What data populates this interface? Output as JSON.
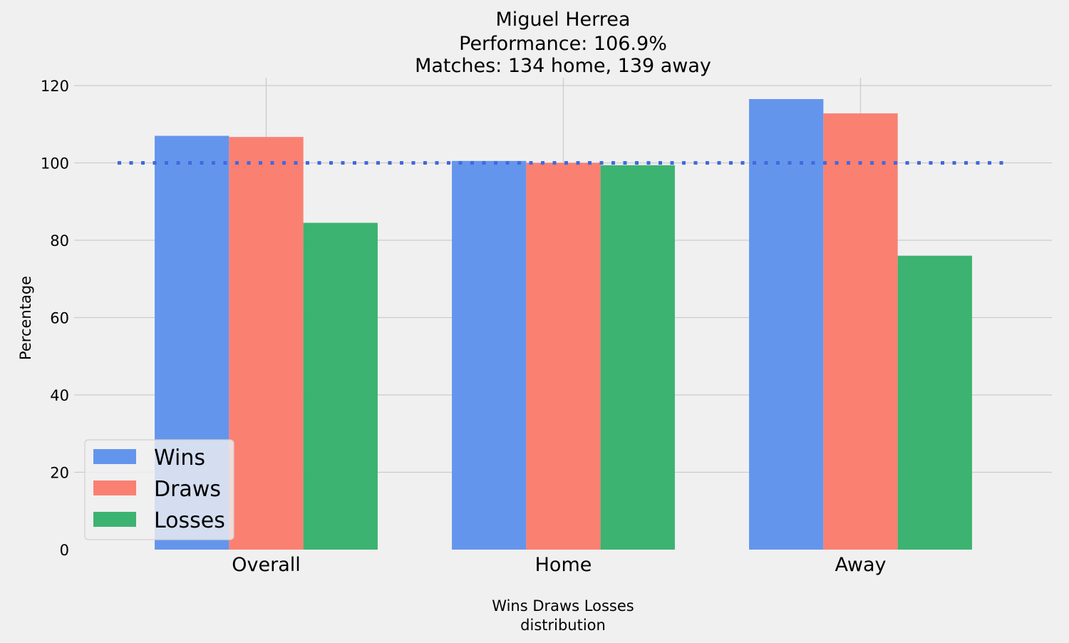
{
  "chart_data": {
    "type": "bar",
    "title_lines": [
      "Miguel Herrea",
      "Performance: 106.9%",
      "Matches: 134 home, 139 away"
    ],
    "xlabel_lines": [
      "Wins Draws Losses",
      "distribution"
    ],
    "ylabel": "Percentage",
    "categories": [
      "Overall",
      "Home",
      "Away"
    ],
    "series": [
      {
        "name": "Wins",
        "color": "#6495ed",
        "values": [
          107.0,
          100.5,
          116.5
        ]
      },
      {
        "name": "Draws",
        "color": "#fa8072",
        "values": [
          106.7,
          100.0,
          112.8
        ]
      },
      {
        "name": "Losses",
        "color": "#3cb371",
        "values": [
          84.5,
          99.4,
          76.0
        ]
      }
    ],
    "reference_line": {
      "value": 100,
      "style": "dotted",
      "color": "#4169e1"
    },
    "yticks": [
      0,
      20,
      40,
      60,
      80,
      100,
      120
    ],
    "ylim": [
      0,
      122
    ],
    "grid": true,
    "legend_position": "lower-left"
  }
}
